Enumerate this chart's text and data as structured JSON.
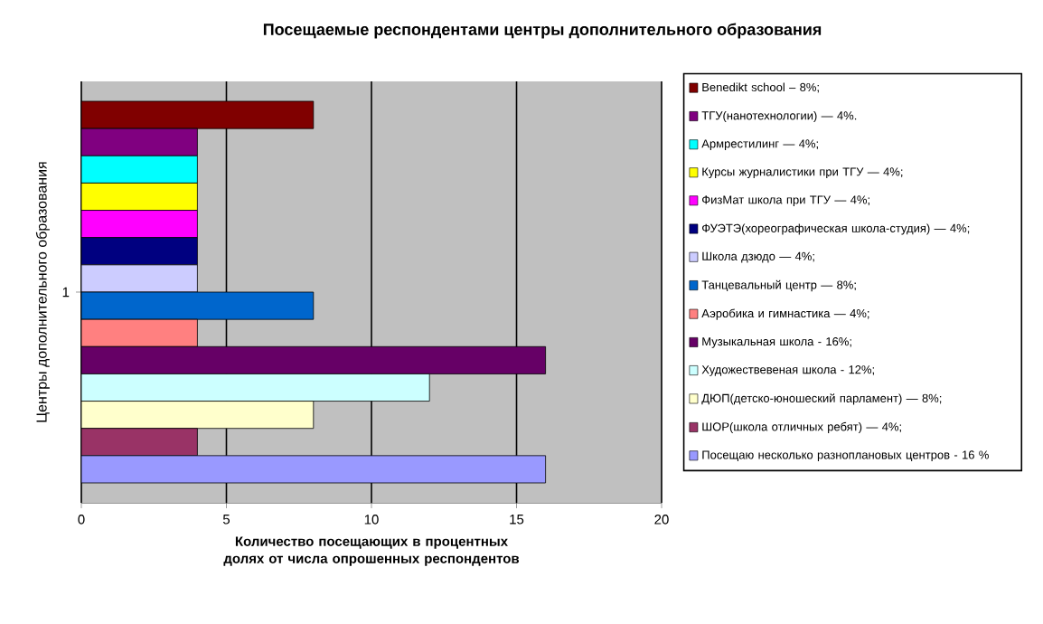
{
  "chart_data": {
    "type": "bar",
    "orientation": "horizontal",
    "title": "Посещаемые респондентами центры дополнительного образования",
    "xlabel": "Количество посещающих в процентных долях от числа опрошенных респондентов",
    "ylabel": "Центры дополнительного образования",
    "categories": [
      "1"
    ],
    "xlim": [
      0,
      20
    ],
    "xticks": [
      0,
      5,
      10,
      15,
      20
    ],
    "grid": "x",
    "legend": "right",
    "series": [
      {
        "name": "Benedikt school – 8%;",
        "color": "#800000",
        "values": [
          8
        ]
      },
      {
        "name": "ТГУ(нанотехнологии) — 4%.",
        "color": "#800080",
        "values": [
          4
        ]
      },
      {
        "name": "Армрестилинг — 4%;",
        "color": "#00ffff",
        "values": [
          4
        ]
      },
      {
        "name": "Курсы журналистики при ТГУ — 4%;",
        "color": "#ffff00",
        "values": [
          4
        ]
      },
      {
        "name": "ФизМат школа при ТГУ — 4%;",
        "color": "#ff00ff",
        "values": [
          4
        ]
      },
      {
        "name": "ФУЭТЭ(хореографическая школа-студия) — 4%;",
        "color": "#000080",
        "values": [
          4
        ]
      },
      {
        "name": "Школа дзюдо — 4%;",
        "color": "#ccccff",
        "values": [
          4
        ]
      },
      {
        "name": "Танцевальный центр — 8%;",
        "color": "#0066cc",
        "values": [
          8
        ]
      },
      {
        "name": "Аэробика и гимнастика — 4%;",
        "color": "#ff8080",
        "values": [
          4
        ]
      },
      {
        "name": "Музыкальная школа - 16%;",
        "color": "#660066",
        "values": [
          16
        ]
      },
      {
        "name": "Художествевеная школа - 12%;",
        "color": "#ccffff",
        "values": [
          12
        ]
      },
      {
        "name": "ДЮП(детско-юношеский парламент) — 8%;",
        "color": "#ffffcc",
        "values": [
          8
        ]
      },
      {
        "name": "ШОР(школа отличных ребят) — 4%;",
        "color": "#993366",
        "values": [
          4
        ]
      },
      {
        "name": "Посещаю несколько разноплановых центров - 16 %",
        "color": "#9999ff",
        "values": [
          16
        ]
      }
    ]
  }
}
